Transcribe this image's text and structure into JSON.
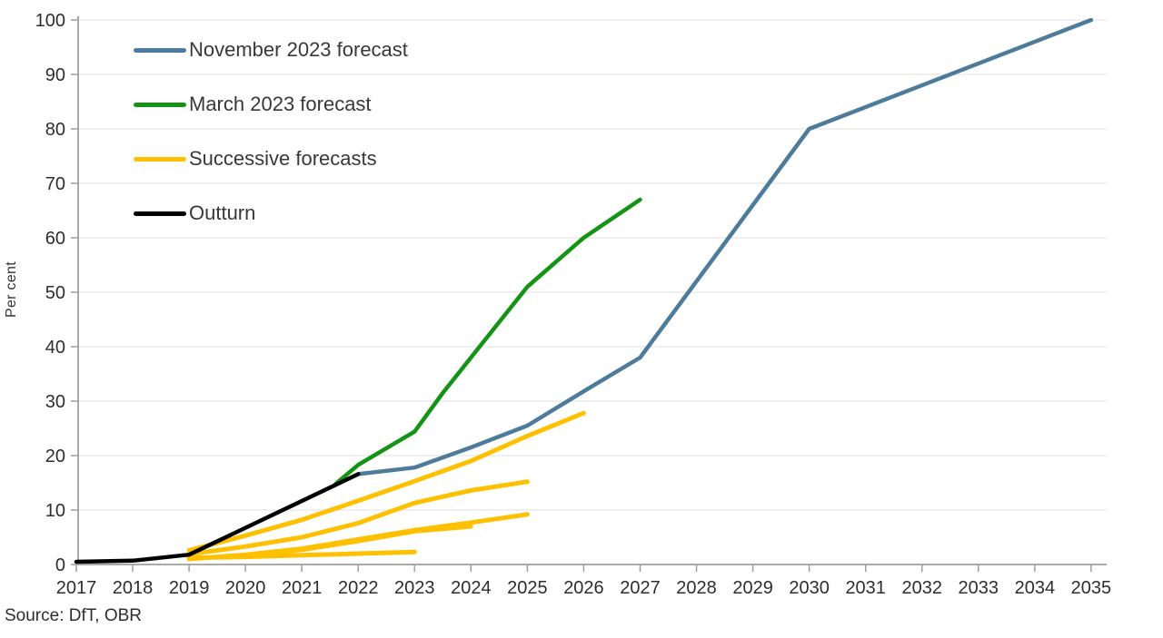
{
  "source": {
    "text": "Source: DfT, OBR"
  },
  "legend": {
    "items": [
      {
        "label": "November 2023 forecast",
        "color": "#4d7b9c"
      },
      {
        "label": "March 2023 forecast",
        "color": "#149414"
      },
      {
        "label": "Successive forecasts",
        "color": "#ffc000"
      },
      {
        "label": "Outturn",
        "color": "#000000"
      }
    ]
  },
  "chart_data": {
    "type": "line",
    "title": "",
    "xlabel": "",
    "ylabel": "Per cent",
    "xlim": [
      2017,
      2035
    ],
    "ylim": [
      0,
      100
    ],
    "x_ticks": [
      2017,
      2018,
      2019,
      2020,
      2021,
      2022,
      2023,
      2024,
      2025,
      2026,
      2027,
      2028,
      2029,
      2030,
      2031,
      2032,
      2033,
      2034,
      2035
    ],
    "y_ticks": [
      0,
      10,
      20,
      30,
      40,
      50,
      60,
      70,
      80,
      90,
      100
    ],
    "grid": "horizontal",
    "legend_position": "top-left",
    "colors": {
      "axis": "#9e9e9e",
      "gridline": "#ebebeb",
      "tick_text": "#2e2e2e"
    },
    "series": [
      {
        "id": "successive-forecast-1",
        "legend_label": "Successive forecasts",
        "color": "#ffc000",
        "width": 5,
        "points": [
          [
            2019,
            1.2
          ],
          [
            2020,
            1.4
          ],
          [
            2021,
            1.7
          ],
          [
            2022,
            2.0
          ],
          [
            2023,
            2.3
          ]
        ]
      },
      {
        "id": "successive-forecast-2",
        "legend_label": "Successive forecasts",
        "color": "#ffc000",
        "width": 5,
        "points": [
          [
            2020,
            1.6
          ],
          [
            2021,
            2.7
          ],
          [
            2022,
            4.3
          ],
          [
            2023,
            6.1
          ],
          [
            2024,
            7.0
          ]
        ]
      },
      {
        "id": "successive-forecast-3",
        "legend_label": "Successive forecasts",
        "color": "#ffc000",
        "width": 5,
        "points": [
          [
            2019,
            1.0
          ],
          [
            2020,
            1.8
          ],
          [
            2021,
            2.9
          ],
          [
            2022,
            4.6
          ],
          [
            2023,
            6.3
          ],
          [
            2024,
            7.7
          ],
          [
            2025,
            9.2
          ]
        ]
      },
      {
        "id": "successive-forecast-4",
        "legend_label": "Successive forecasts",
        "color": "#ffc000",
        "width": 5,
        "points": [
          [
            2019,
            1.9
          ],
          [
            2020,
            3.3
          ],
          [
            2021,
            5.0
          ],
          [
            2022,
            7.6
          ],
          [
            2023,
            11.3
          ],
          [
            2024,
            13.6
          ],
          [
            2025,
            15.2
          ]
        ]
      },
      {
        "id": "successive-forecast-5",
        "legend_label": "Successive forecasts",
        "color": "#ffc000",
        "width": 5,
        "points": [
          [
            2019,
            2.6
          ],
          [
            2020,
            5.3
          ],
          [
            2021,
            8.2
          ],
          [
            2022,
            11.7
          ],
          [
            2023,
            15.3
          ],
          [
            2024,
            19.0
          ],
          [
            2025,
            23.6
          ],
          [
            2026,
            27.8
          ]
        ]
      },
      {
        "id": "march-2023-forecast",
        "legend_label": "March 2023 forecast",
        "color": "#149414",
        "width": 4.5,
        "points": [
          [
            2021.6,
            14.8
          ],
          [
            2022,
            18.3
          ],
          [
            2023,
            24.4
          ],
          [
            2023.5,
            31.5
          ],
          [
            2024,
            38
          ],
          [
            2025,
            51
          ],
          [
            2026,
            60
          ],
          [
            2027,
            67
          ]
        ]
      },
      {
        "id": "november-2023-forecast",
        "legend_label": "November 2023 forecast",
        "color": "#4d7b9c",
        "width": 4.5,
        "points": [
          [
            2022,
            16.6
          ],
          [
            2023,
            17.8
          ],
          [
            2024,
            21.5
          ],
          [
            2025,
            25.5
          ],
          [
            2026,
            31.8
          ],
          [
            2027,
            38
          ],
          [
            2030,
            80
          ],
          [
            2035,
            100
          ]
        ]
      },
      {
        "id": "outturn",
        "legend_label": "Outturn",
        "color": "#000000",
        "width": 4.5,
        "points": [
          [
            2017,
            0.5
          ],
          [
            2018,
            0.7
          ],
          [
            2019,
            1.8
          ],
          [
            2022,
            16.6
          ]
        ]
      }
    ]
  }
}
